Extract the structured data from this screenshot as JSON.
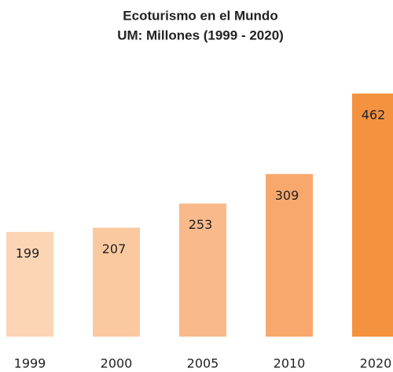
{
  "chart_data": {
    "type": "bar",
    "title": "Ecoturismo en el Mundo",
    "subtitle": "UM: Millones (1999 - 2020)",
    "categories": [
      "1999",
      "2000",
      "2005",
      "2010",
      "2020"
    ],
    "values": [
      199,
      207,
      253,
      309,
      462
    ],
    "colors": [
      "#fcd5b5",
      "#fbc9a0",
      "#f9b98a",
      "#f8a86c",
      "#f59240"
    ]
  }
}
